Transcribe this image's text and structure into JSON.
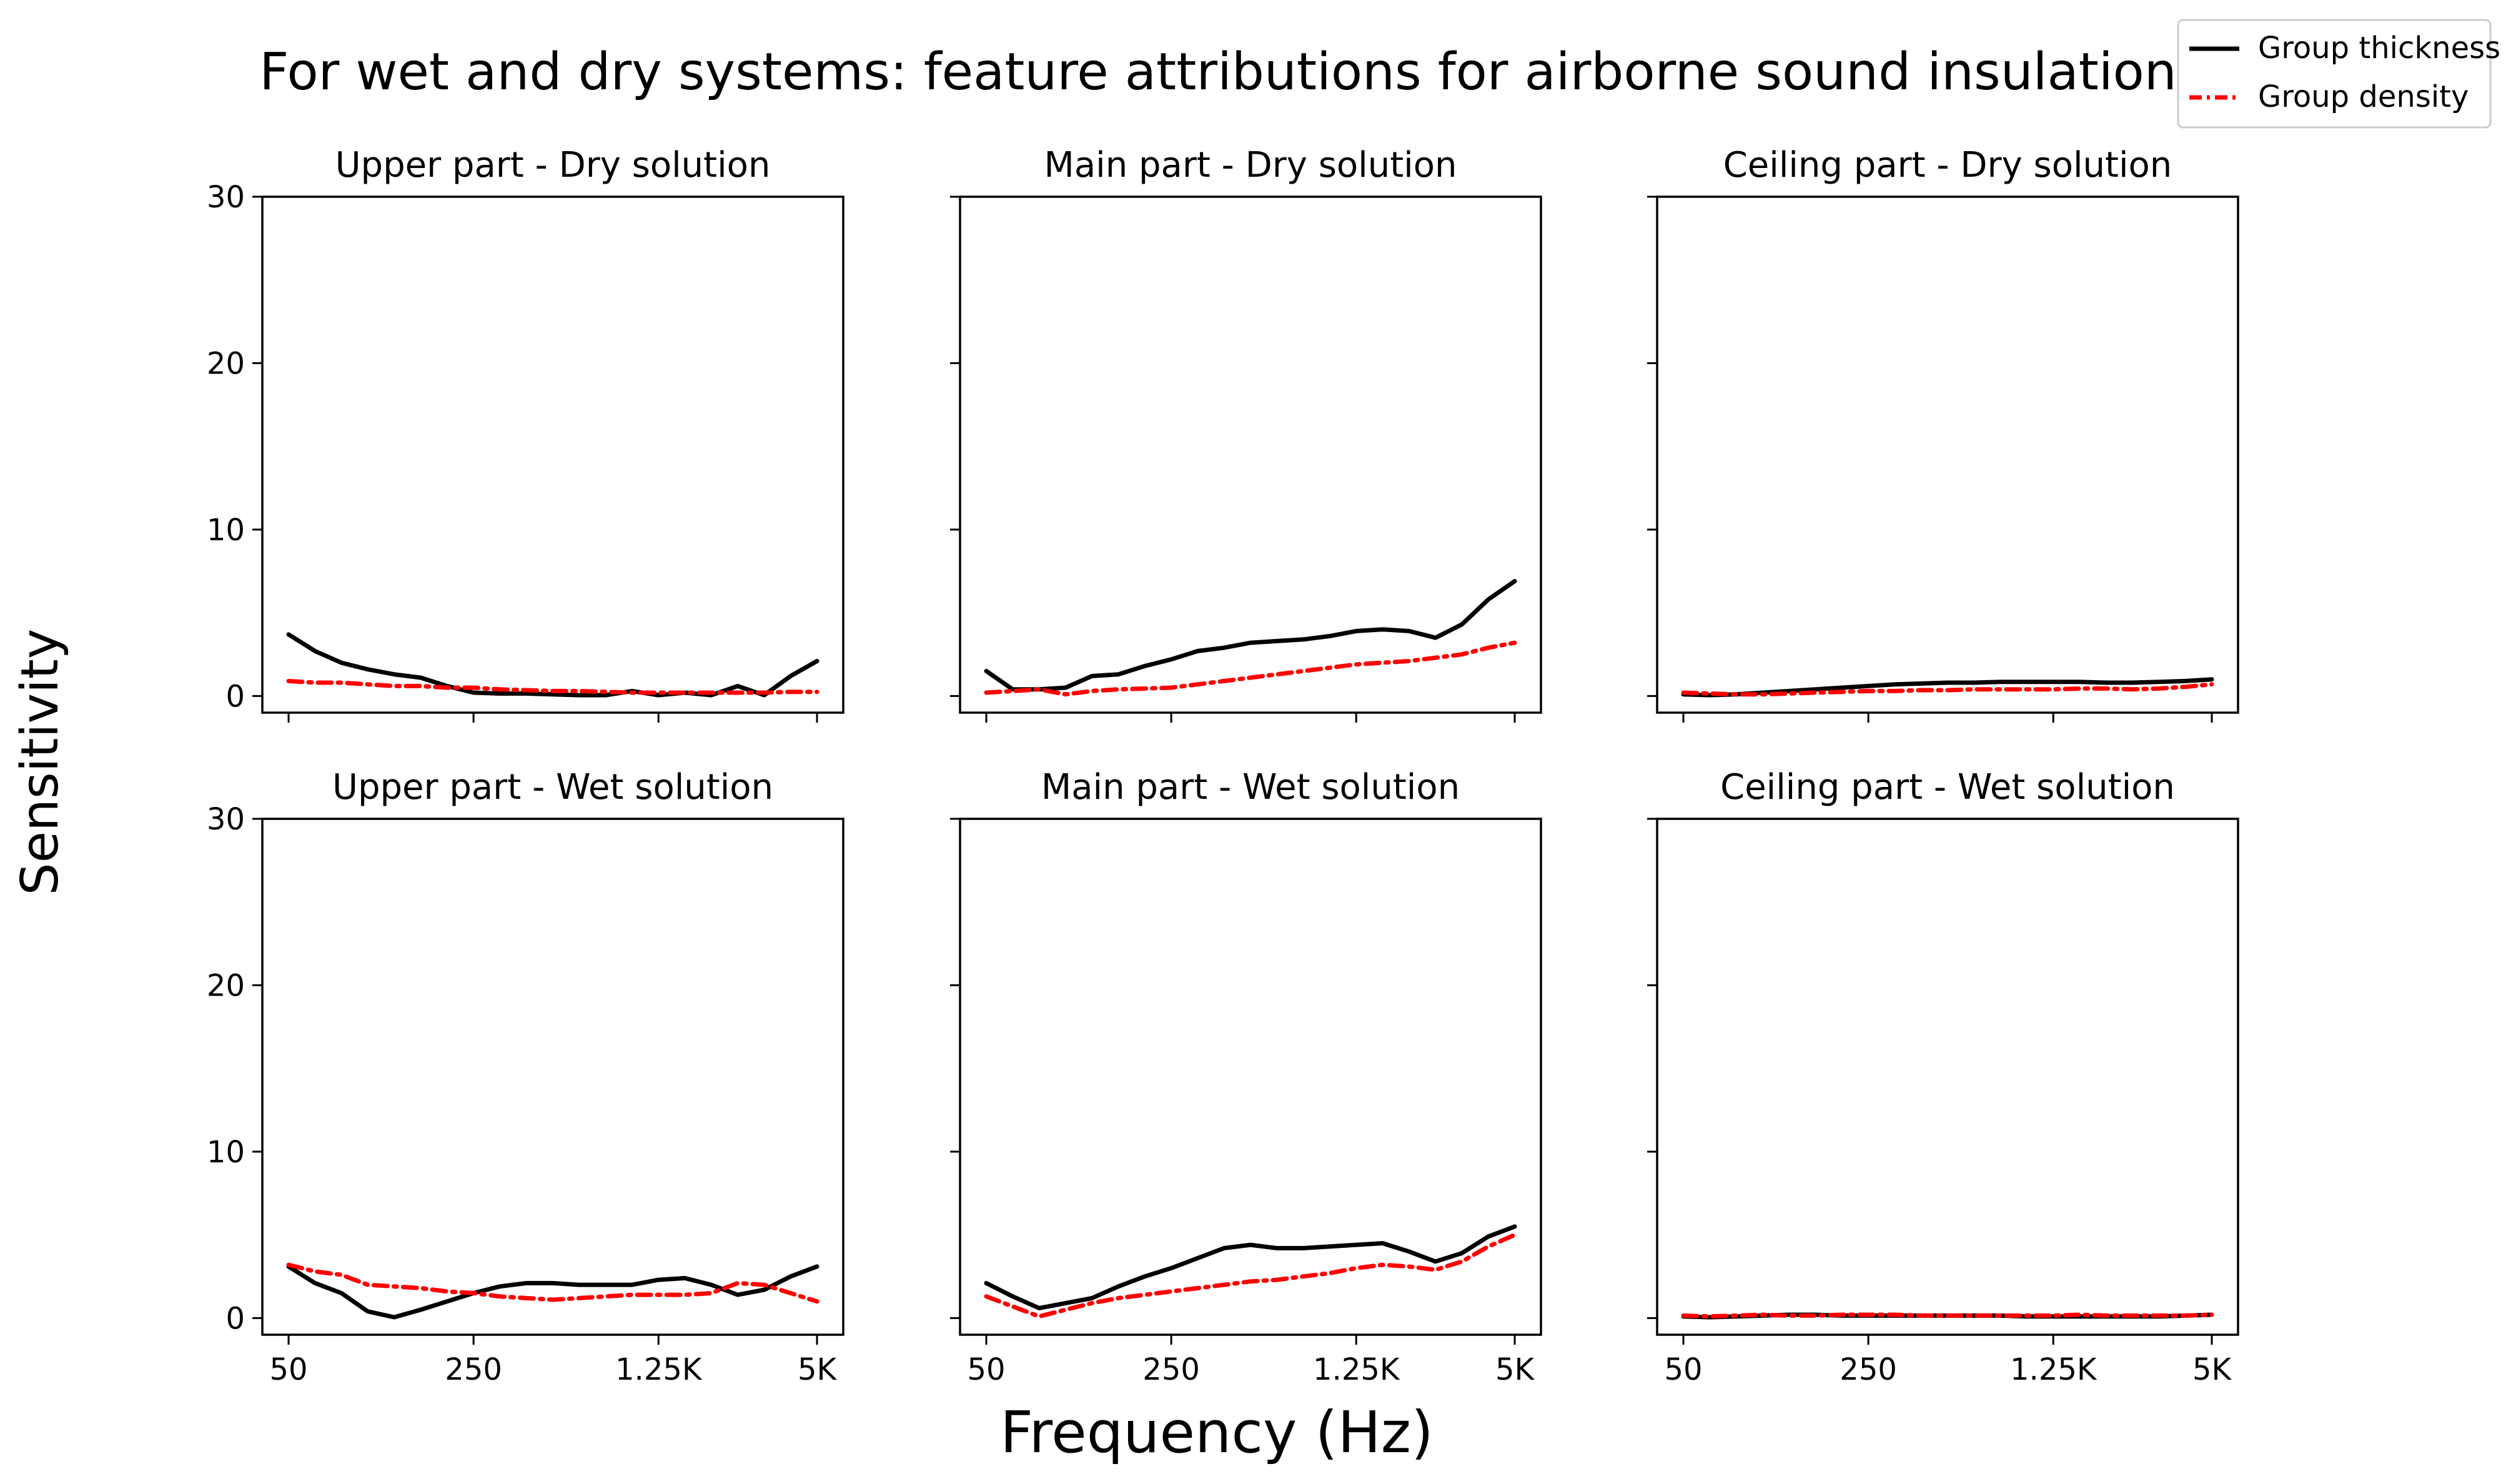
{
  "figure": {
    "title": "For wet and dry systems: feature attributions for airborne sound insulation",
    "xlabel": "Frequency (Hz)",
    "ylabel": "Sensitivity",
    "colors": {
      "thickness": "#000000",
      "density": "#ff0000"
    }
  },
  "legend": {
    "items": [
      {
        "label": "Group thickness",
        "style": "solid",
        "color": "#000000"
      },
      {
        "label": "Group density",
        "style": "dashdot",
        "color": "#ff0000"
      }
    ],
    "position": "top-right"
  },
  "chart_data": [
    {
      "type": "line",
      "title": "Upper part - Dry solution",
      "x": [
        50,
        63,
        80,
        100,
        125,
        160,
        200,
        250,
        315,
        400,
        500,
        630,
        800,
        1000,
        1250,
        1600,
        2000,
        2500,
        3150,
        4000,
        5000
      ],
      "xticks": [
        "50",
        "250",
        "1.25K",
        "5K"
      ],
      "ylim": [
        -1,
        30
      ],
      "yticks": [
        0,
        10,
        20,
        30
      ],
      "series": [
        {
          "name": "Group thickness",
          "values": [
            3.7,
            2.7,
            2.0,
            1.6,
            1.3,
            1.1,
            0.6,
            0.2,
            0.15,
            0.15,
            0.1,
            0.05,
            0.05,
            0.3,
            0.05,
            0.2,
            0.05,
            0.6,
            0.05,
            1.2,
            2.1
          ]
        },
        {
          "name": "Group density",
          "values": [
            0.9,
            0.8,
            0.8,
            0.7,
            0.6,
            0.6,
            0.5,
            0.5,
            0.4,
            0.35,
            0.3,
            0.3,
            0.25,
            0.2,
            0.2,
            0.2,
            0.2,
            0.2,
            0.2,
            0.25,
            0.25
          ]
        }
      ]
    },
    {
      "type": "line",
      "title": "Main part - Dry solution",
      "x": [
        50,
        63,
        80,
        100,
        125,
        160,
        200,
        250,
        315,
        400,
        500,
        630,
        800,
        1000,
        1250,
        1600,
        2000,
        2500,
        3150,
        4000,
        5000
      ],
      "xticks": [
        "50",
        "250",
        "1.25K",
        "5K"
      ],
      "ylim": [
        -1,
        30
      ],
      "yticks": [
        0,
        10,
        20,
        30
      ],
      "series": [
        {
          "name": "Group thickness",
          "values": [
            1.5,
            0.4,
            0.4,
            0.5,
            1.2,
            1.3,
            1.8,
            2.2,
            2.7,
            2.9,
            3.2,
            3.3,
            3.4,
            3.6,
            3.9,
            4.0,
            3.9,
            3.5,
            4.3,
            5.8,
            6.9
          ]
        },
        {
          "name": "Group density",
          "values": [
            0.2,
            0.3,
            0.4,
            0.1,
            0.3,
            0.4,
            0.45,
            0.5,
            0.7,
            0.9,
            1.1,
            1.3,
            1.5,
            1.7,
            1.9,
            2.0,
            2.1,
            2.3,
            2.5,
            2.9,
            3.2
          ]
        }
      ]
    },
    {
      "type": "line",
      "title": "Ceiling part - Dry solution",
      "x": [
        50,
        63,
        80,
        100,
        125,
        160,
        200,
        250,
        315,
        400,
        500,
        630,
        800,
        1000,
        1250,
        1600,
        2000,
        2500,
        3150,
        4000,
        5000
      ],
      "xticks": [
        "50",
        "250",
        "1.25K",
        "5K"
      ],
      "ylim": [
        -1,
        30
      ],
      "yticks": [
        0,
        10,
        20,
        30
      ],
      "series": [
        {
          "name": "Group thickness",
          "values": [
            0.1,
            0.05,
            0.1,
            0.2,
            0.3,
            0.4,
            0.5,
            0.6,
            0.7,
            0.75,
            0.8,
            0.8,
            0.85,
            0.85,
            0.85,
            0.85,
            0.8,
            0.8,
            0.85,
            0.9,
            1.0
          ]
        },
        {
          "name": "Group density",
          "values": [
            0.2,
            0.15,
            0.1,
            0.1,
            0.15,
            0.2,
            0.25,
            0.3,
            0.3,
            0.35,
            0.35,
            0.4,
            0.4,
            0.4,
            0.4,
            0.45,
            0.45,
            0.4,
            0.45,
            0.55,
            0.7
          ]
        }
      ]
    },
    {
      "type": "line",
      "title": "Upper part - Wet solution",
      "x": [
        50,
        63,
        80,
        100,
        125,
        160,
        200,
        250,
        315,
        400,
        500,
        630,
        800,
        1000,
        1250,
        1600,
        2000,
        2500,
        3150,
        4000,
        5000
      ],
      "xticks": [
        "50",
        "250",
        "1.25K",
        "5K"
      ],
      "ylim": [
        -1,
        30
      ],
      "yticks": [
        0,
        10,
        20,
        30
      ],
      "series": [
        {
          "name": "Group thickness",
          "values": [
            3.1,
            2.1,
            1.5,
            0.4,
            0.05,
            0.5,
            1.0,
            1.5,
            1.9,
            2.1,
            2.1,
            2.0,
            2.0,
            2.0,
            2.3,
            2.4,
            2.0,
            1.4,
            1.7,
            2.5,
            3.1
          ]
        },
        {
          "name": "Group density",
          "values": [
            3.2,
            2.8,
            2.6,
            2.0,
            1.9,
            1.8,
            1.6,
            1.5,
            1.3,
            1.2,
            1.1,
            1.2,
            1.3,
            1.4,
            1.4,
            1.4,
            1.5,
            2.1,
            2.0,
            1.5,
            1.0
          ]
        }
      ]
    },
    {
      "type": "line",
      "title": "Main part - Wet solution",
      "x": [
        50,
        63,
        80,
        100,
        125,
        160,
        200,
        250,
        315,
        400,
        500,
        630,
        800,
        1000,
        1250,
        1600,
        2000,
        2500,
        3150,
        4000,
        5000
      ],
      "xticks": [
        "50",
        "250",
        "1.25K",
        "5K"
      ],
      "ylim": [
        -1,
        30
      ],
      "yticks": [
        0,
        10,
        20,
        30
      ],
      "series": [
        {
          "name": "Group thickness",
          "values": [
            2.1,
            1.3,
            0.6,
            0.9,
            1.2,
            1.9,
            2.5,
            3.0,
            3.6,
            4.2,
            4.4,
            4.2,
            4.2,
            4.3,
            4.4,
            4.5,
            4.0,
            3.4,
            3.9,
            4.9,
            5.5
          ]
        },
        {
          "name": "Group density",
          "values": [
            1.3,
            0.7,
            0.1,
            0.5,
            0.9,
            1.2,
            1.4,
            1.6,
            1.8,
            2.0,
            2.2,
            2.3,
            2.5,
            2.7,
            3.0,
            3.2,
            3.1,
            2.9,
            3.4,
            4.3,
            5.0
          ]
        }
      ]
    },
    {
      "type": "line",
      "title": "Ceiling part - Wet solution",
      "x": [
        50,
        63,
        80,
        100,
        125,
        160,
        200,
        250,
        315,
        400,
        500,
        630,
        800,
        1000,
        1250,
        1600,
        2000,
        2500,
        3150,
        4000,
        5000
      ],
      "xticks": [
        "50",
        "250",
        "1.25K",
        "5K"
      ],
      "ylim": [
        -1,
        30
      ],
      "yticks": [
        0,
        10,
        20,
        30
      ],
      "series": [
        {
          "name": "Group thickness",
          "values": [
            0.1,
            0.05,
            0.1,
            0.15,
            0.2,
            0.2,
            0.15,
            0.15,
            0.15,
            0.15,
            0.15,
            0.15,
            0.15,
            0.1,
            0.1,
            0.1,
            0.1,
            0.1,
            0.1,
            0.15,
            0.2
          ]
        },
        {
          "name": "Group density",
          "values": [
            0.15,
            0.1,
            0.15,
            0.2,
            0.15,
            0.15,
            0.2,
            0.2,
            0.2,
            0.15,
            0.15,
            0.15,
            0.15,
            0.15,
            0.15,
            0.2,
            0.15,
            0.15,
            0.15,
            0.15,
            0.2
          ]
        }
      ]
    }
  ]
}
